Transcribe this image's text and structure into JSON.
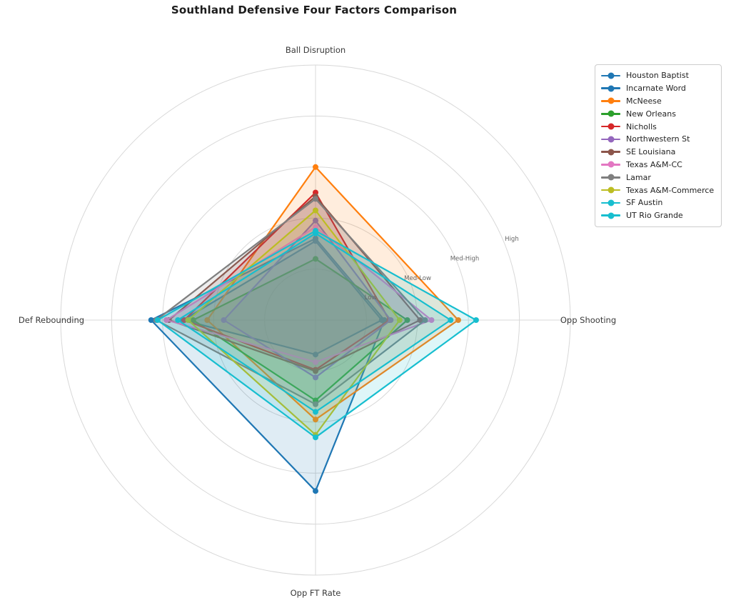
{
  "chart_data": {
    "type": "radar",
    "title": "Southland Defensive Four Factors Comparison",
    "axes": [
      "Ball Disruption",
      "Opp Shooting",
      "Opp FT Rate",
      "Def Rebounding"
    ],
    "axis_angles_deg": [
      90,
      0,
      270,
      180
    ],
    "rlim": [
      0,
      1.0
    ],
    "radial_ticks": [
      {
        "label": "Low",
        "value": 0.2
      },
      {
        "label": "Med-Low",
        "value": 0.4
      },
      {
        "label": "Med-High",
        "value": 0.6
      },
      {
        "label": "High",
        "value": 0.8
      }
    ],
    "rlabel_angle_deg": 22.5,
    "grid": true,
    "legend_position": "upper right",
    "series": [
      {
        "name": "Houston Baptist",
        "color": "#1f77b4",
        "values": [
          0.32,
          0.27,
          0.67,
          0.645
        ]
      },
      {
        "name": "Incarnate Word",
        "color": "#1f77b4",
        "values": [
          0.31,
          0.26,
          0.135,
          0.52
        ]
      },
      {
        "name": "McNeese",
        "color": "#ff7f0e",
        "values": [
          0.6,
          0.56,
          0.39,
          0.425
        ]
      },
      {
        "name": "New Orleans",
        "color": "#2ca02c",
        "values": [
          0.24,
          0.36,
          0.315,
          0.48
        ]
      },
      {
        "name": "Nicholls",
        "color": "#d62728",
        "values": [
          0.5,
          0.29,
          0.195,
          0.515
        ]
      },
      {
        "name": "Northwestern St",
        "color": "#9467bd",
        "values": [
          0.39,
          0.295,
          0.225,
          0.36
        ]
      },
      {
        "name": "SE Louisiana",
        "color": "#8c564b",
        "values": [
          0.485,
          0.41,
          0.2,
          0.575
        ]
      },
      {
        "name": "Texas A&M-CC",
        "color": "#e377c2",
        "values": [
          0.365,
          0.455,
          0.165,
          0.585
        ]
      },
      {
        "name": "Lamar",
        "color": "#7f7f7f",
        "values": [
          0.475,
          0.43,
          0.33,
          0.625
        ]
      },
      {
        "name": "Texas A&M-Commerce",
        "color": "#bcbd22",
        "values": [
          0.43,
          0.33,
          0.45,
          0.5
        ]
      },
      {
        "name": "SF Austin",
        "color": "#17becf",
        "values": [
          0.34,
          0.53,
          0.36,
          0.54
        ]
      },
      {
        "name": "UT Rio Grande",
        "color": "#17becf",
        "values": [
          0.35,
          0.63,
          0.46,
          0.62
        ]
      }
    ],
    "style": {
      "background": "#ffffff",
      "grid_color": "#d8d8d8",
      "axis_label_color": "#3a3a3a",
      "tick_label_color": "#666666",
      "title_color": "#1c1c1c",
      "fill_opacity": 0.14,
      "line_width": 2.2,
      "marker_radius": 4
    }
  }
}
